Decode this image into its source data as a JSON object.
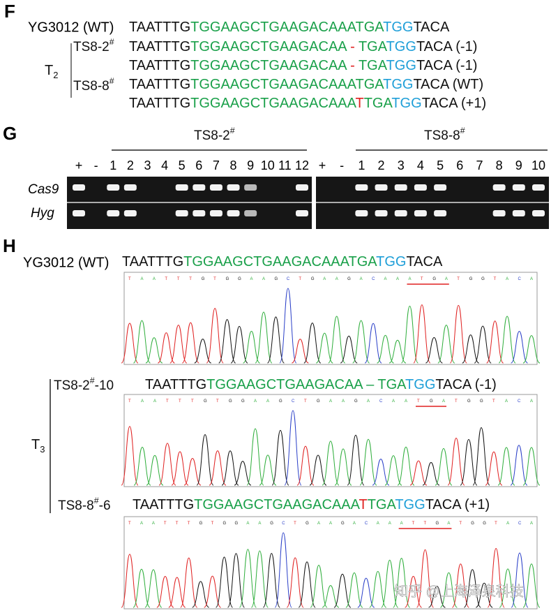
{
  "panel_f": {
    "label": "F",
    "rows": [
      {
        "name": "YG3012 (WT)",
        "segments": [
          {
            "text": "TAATTTG",
            "color": "#111111"
          },
          {
            "text": "TGGAAGCTGAAGACAAATGA",
            "color": "#1aa04a"
          },
          {
            "text": "TGG",
            "color": "#1f9fd8"
          },
          {
            "text": "TACA",
            "color": "#111111"
          }
        ]
      },
      {
        "segments": [
          {
            "text": "TAATTTG",
            "color": "#111111"
          },
          {
            "text": "TGGAAGCTGAAGACAA",
            "color": "#1aa04a"
          },
          {
            "text": " - ",
            "color": "#e02020"
          },
          {
            "text": "TGA",
            "color": "#1aa04a"
          },
          {
            "text": "TGG",
            "color": "#1f9fd8"
          },
          {
            "text": "TACA (-1)",
            "color": "#111111"
          }
        ]
      },
      {
        "segments": [
          {
            "text": "TAATTTG",
            "color": "#111111"
          },
          {
            "text": "TGGAAGCTGAAGACAA",
            "color": "#1aa04a"
          },
          {
            "text": " - ",
            "color": "#e02020"
          },
          {
            "text": "TGA",
            "color": "#1aa04a"
          },
          {
            "text": "TGG",
            "color": "#1f9fd8"
          },
          {
            "text": "TACA (-1)",
            "color": "#111111"
          }
        ]
      },
      {
        "segments": [
          {
            "text": "TAATTTG",
            "color": "#111111"
          },
          {
            "text": "TGGAAGCTGAAGACAAATGA",
            "color": "#1aa04a"
          },
          {
            "text": "TGG",
            "color": "#1f9fd8"
          },
          {
            "text": "TACA (WT)",
            "color": "#111111"
          }
        ]
      },
      {
        "segments": [
          {
            "text": "TAATTTG",
            "color": "#111111"
          },
          {
            "text": "TGGAAGCTGAAGACAAA",
            "color": "#1aa04a"
          },
          {
            "text": "T",
            "color": "#e02020"
          },
          {
            "text": "TGA",
            "color": "#1aa04a"
          },
          {
            "text": "TGG",
            "color": "#1f9fd8"
          },
          {
            "text": "TACA (+1)",
            "color": "#111111"
          }
        ]
      }
    ],
    "group_labels": [
      {
        "name": "TS8-2",
        "sup": "#"
      },
      {
        "name": "TS8-8",
        "sup": "#"
      }
    ],
    "generation": {
      "text": "T",
      "sub": "2"
    }
  },
  "panel_g": {
    "label": "G",
    "gels": [
      {
        "name": "TS8-2",
        "sup": "#",
        "lanes": [
          "+",
          "-",
          "1",
          "2",
          "3",
          "4",
          "5",
          "6",
          "7",
          "8",
          "9",
          "10",
          "11",
          "12"
        ]
      },
      {
        "name": "TS8-8",
        "sup": "#",
        "lanes": [
          "+",
          "-",
          "1",
          "2",
          "3",
          "4",
          "5",
          "6",
          "7",
          "8",
          "9",
          "10"
        ]
      }
    ],
    "rows": [
      "Cas9",
      "Hyg"
    ]
  },
  "panel_h": {
    "label": "H",
    "reference": {
      "name": "YG3012 (WT)",
      "bases": "TAATTTGTGGAAGCTGAAGACAAATGATGGTACA",
      "segments": [
        {
          "text": "TAATTTG",
          "color": "#111111"
        },
        {
          "text": "TGGAAGCTGAAGACAAATGA",
          "color": "#1aa04a"
        },
        {
          "text": "TGG",
          "color": "#1f9fd8"
        },
        {
          "text": "TACA",
          "color": "#111111"
        }
      ]
    },
    "samples": [
      {
        "name": "TS8-2",
        "sup": "#",
        "suffix": "-10",
        "bases": "TAATTTGTGGAAGCTGAAGACAATGATGGTACA",
        "segments": [
          {
            "text": "TAATTTG",
            "color": "#111111"
          },
          {
            "text": "TGGAAGCTGAAGACAA",
            "color": "#1aa04a"
          },
          {
            "text": " – ",
            "color": "#1aa04a"
          },
          {
            "text": "TGA",
            "color": "#1aa04a"
          },
          {
            "text": "TGG",
            "color": "#1f9fd8"
          },
          {
            "text": "TACA (-1)",
            "color": "#111111"
          }
        ]
      },
      {
        "name": "TS8-8",
        "sup": "#",
        "suffix": "-6",
        "bases": "TAATTTGTGGAAGCTGAAGACAAATTGATGGTACA",
        "segments": [
          {
            "text": "TAATTTG",
            "color": "#111111"
          },
          {
            "text": "TGGAAGCTGAAGACAAA",
            "color": "#1aa04a"
          },
          {
            "text": "T",
            "color": "#e02020"
          },
          {
            "text": "TGA",
            "color": "#1aa04a"
          },
          {
            "text": "TGG",
            "color": "#1f9fd8"
          },
          {
            "text": "TACA (+1)",
            "color": "#111111"
          }
        ]
      }
    ],
    "generation": {
      "text": "T",
      "sub": "3"
    }
  },
  "watermark": "知乎 @上海泽泉科技"
}
